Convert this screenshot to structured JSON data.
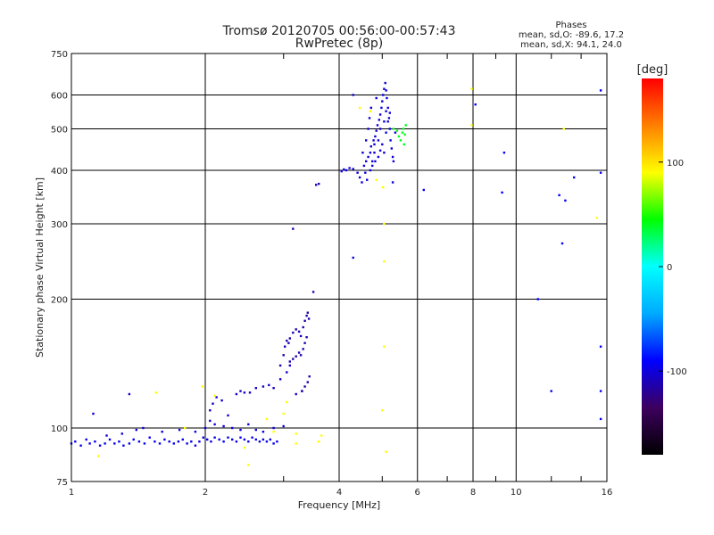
{
  "title_line1": "Tromsø 20120705 00:56:00-00:57:43",
  "title_line2": "RwPretec (8p)",
  "stats": {
    "header": "Phases",
    "line_o": "mean, sd,O: -89.6, 17.2",
    "line_x": "mean, sd,X:  94.1, 24.0"
  },
  "chart_data": {
    "type": "scatter",
    "title": "Tromsø 20120705 00:56:00-00:57:43",
    "subtitle": "RwPretec (8p)",
    "xlabel": "Frequency [MHz]",
    "ylabel": "Stationary phase Virtual Height [km]",
    "x_scale": "log",
    "y_scale": "log",
    "xlim": [
      1,
      16
    ],
    "ylim": [
      75,
      750
    ],
    "x_ticks": [
      1,
      2,
      4,
      6,
      8,
      10,
      16
    ],
    "x_tick_labels": [
      "1",
      "2",
      "4",
      "6",
      "8",
      "10",
      "16"
    ],
    "x_minor_ticks": [
      3,
      5,
      7,
      9,
      12,
      14
    ],
    "y_ticks": [
      75,
      100,
      200,
      300,
      400,
      500,
      600,
      750
    ],
    "y_tick_labels": [
      "75",
      "100",
      "200",
      "300",
      "400",
      "500",
      "600",
      "750"
    ],
    "grid": true,
    "colorbar": {
      "label": "[deg]",
      "range": [
        -180,
        180
      ],
      "ticks": [
        100,
        0,
        -100
      ],
      "tick_labels": [
        "100",
        "0",
        "-100"
      ],
      "colors": [
        "#000000",
        "#3d005e",
        "#0000ff",
        "#00aaff",
        "#00ffff",
        "#00ff00",
        "#ffff00",
        "#ff8000",
        "#ff0000"
      ]
    },
    "series": [
      {
        "phase": -95,
        "points": [
          [
            1.0,
            92
          ],
          [
            1.02,
            93
          ],
          [
            1.05,
            91
          ],
          [
            1.08,
            94
          ],
          [
            1.1,
            92
          ],
          [
            1.13,
            93
          ],
          [
            1.16,
            91
          ],
          [
            1.19,
            92
          ],
          [
            1.22,
            94
          ],
          [
            1.25,
            92
          ],
          [
            1.28,
            93
          ],
          [
            1.31,
            91
          ],
          [
            1.35,
            92
          ],
          [
            1.38,
            94
          ],
          [
            1.42,
            93
          ],
          [
            1.46,
            92
          ],
          [
            1.5,
            95
          ],
          [
            1.54,
            93
          ],
          [
            1.58,
            92
          ],
          [
            1.62,
            94
          ],
          [
            1.66,
            93
          ],
          [
            1.7,
            92
          ],
          [
            1.74,
            93
          ],
          [
            1.78,
            94
          ],
          [
            1.82,
            92
          ],
          [
            1.86,
            93
          ],
          [
            1.9,
            91
          ],
          [
            1.94,
            93
          ],
          [
            1.98,
            95
          ],
          [
            2.02,
            94
          ],
          [
            2.06,
            93
          ],
          [
            2.1,
            95
          ],
          [
            2.15,
            94
          ],
          [
            2.2,
            93
          ],
          [
            2.25,
            95
          ],
          [
            2.3,
            94
          ],
          [
            2.35,
            93
          ],
          [
            2.4,
            95
          ],
          [
            2.45,
            94
          ],
          [
            2.5,
            93
          ],
          [
            2.55,
            95
          ],
          [
            2.6,
            94
          ],
          [
            2.65,
            93
          ],
          [
            2.7,
            94
          ],
          [
            2.75,
            93
          ],
          [
            2.8,
            94
          ],
          [
            2.85,
            92
          ],
          [
            2.9,
            93
          ]
        ]
      },
      {
        "phase": -100,
        "points": [
          [
            1.2,
            96
          ],
          [
            1.3,
            97
          ],
          [
            1.4,
            99
          ],
          [
            1.45,
            100
          ],
          [
            1.6,
            98
          ],
          [
            1.75,
            99
          ],
          [
            1.9,
            98
          ],
          [
            2.0,
            100
          ],
          [
            2.05,
            104
          ],
          [
            2.1,
            102
          ],
          [
            2.2,
            101
          ],
          [
            2.3,
            100
          ],
          [
            2.4,
            99
          ],
          [
            2.5,
            102
          ],
          [
            2.6,
            99
          ],
          [
            2.7,
            98
          ],
          [
            2.85,
            100
          ],
          [
            3.0,
            101
          ]
        ]
      },
      {
        "phase": -105,
        "points": [
          [
            2.05,
            110
          ],
          [
            2.08,
            114
          ],
          [
            2.12,
            118
          ],
          [
            2.18,
            116
          ],
          [
            2.25,
            107
          ],
          [
            2.35,
            120
          ],
          [
            2.4,
            122
          ],
          [
            2.45,
            121
          ],
          [
            2.52,
            121
          ],
          [
            2.6,
            124
          ],
          [
            2.7,
            125
          ],
          [
            2.78,
            126
          ],
          [
            2.85,
            124
          ],
          [
            1.35,
            120
          ],
          [
            1.12,
            108
          ],
          [
            2.95,
            130
          ],
          [
            3.05,
            135
          ],
          [
            3.1,
            140
          ],
          [
            3.2,
            120
          ],
          [
            3.3,
            122
          ]
        ]
      },
      {
        "phase": -112,
        "points": [
          [
            2.95,
            140
          ],
          [
            3.0,
            148
          ],
          [
            3.02,
            155
          ],
          [
            3.05,
            160
          ],
          [
            3.08,
            158
          ],
          [
            3.1,
            162
          ],
          [
            3.15,
            167
          ],
          [
            3.2,
            170
          ],
          [
            3.25,
            168
          ],
          [
            3.28,
            164
          ],
          [
            3.32,
            172
          ],
          [
            3.35,
            178
          ],
          [
            3.38,
            183
          ],
          [
            3.4,
            186
          ],
          [
            3.42,
            180
          ],
          [
            3.1,
            143
          ],
          [
            3.15,
            145
          ],
          [
            3.2,
            147
          ],
          [
            3.25,
            150
          ],
          [
            3.28,
            148
          ],
          [
            3.32,
            153
          ],
          [
            3.35,
            158
          ],
          [
            3.38,
            163
          ],
          [
            3.3,
            122
          ],
          [
            3.35,
            125
          ],
          [
            3.4,
            128
          ],
          [
            3.43,
            132
          ],
          [
            3.5,
            208
          ],
          [
            3.55,
            370
          ],
          [
            3.6,
            372
          ],
          [
            3.15,
            292
          ]
        ]
      },
      {
        "phase": -100,
        "points": [
          [
            4.05,
            398
          ],
          [
            4.1,
            402
          ],
          [
            4.15,
            400
          ],
          [
            4.22,
            405
          ],
          [
            4.3,
            403
          ],
          [
            4.4,
            395
          ],
          [
            4.45,
            385
          ],
          [
            4.5,
            375
          ],
          [
            4.55,
            410
          ],
          [
            4.6,
            420
          ],
          [
            4.62,
            380
          ],
          [
            4.65,
            430
          ],
          [
            4.7,
            440
          ],
          [
            4.72,
            455
          ],
          [
            4.75,
            420
          ],
          [
            4.78,
            470
          ],
          [
            4.8,
            460
          ],
          [
            4.82,
            480
          ],
          [
            4.85,
            495
          ],
          [
            4.88,
            510
          ],
          [
            4.9,
            470
          ],
          [
            4.92,
            525
          ],
          [
            4.95,
            540
          ],
          [
            4.98,
            560
          ],
          [
            5.0,
            580
          ],
          [
            5.02,
            600
          ],
          [
            5.05,
            620
          ],
          [
            5.08,
            640
          ],
          [
            5.1,
            615
          ],
          [
            5.12,
            590
          ],
          [
            5.15,
            560
          ],
          [
            5.18,
            530
          ],
          [
            5.2,
            500
          ],
          [
            5.22,
            470
          ],
          [
            5.25,
            450
          ],
          [
            5.28,
            430
          ],
          [
            5.3,
            420
          ],
          [
            4.7,
            400
          ],
          [
            4.75,
            410
          ],
          [
            4.82,
            420
          ],
          [
            4.9,
            430
          ],
          [
            4.95,
            445
          ],
          [
            5.0,
            460
          ],
          [
            5.05,
            440
          ],
          [
            5.1,
            490
          ],
          [
            5.15,
            520
          ],
          [
            5.2,
            545
          ],
          [
            4.6,
            470
          ],
          [
            4.65,
            500
          ],
          [
            4.68,
            530
          ],
          [
            4.72,
            560
          ],
          [
            4.85,
            590
          ],
          [
            5.05,
            520
          ],
          [
            5.1,
            550
          ],
          [
            4.95,
            500
          ],
          [
            4.8,
            440
          ],
          [
            4.58,
            395
          ],
          [
            4.52,
            440
          ],
          [
            5.28,
            375
          ],
          [
            4.3,
            250
          ],
          [
            4.3,
            600
          ],
          [
            5.35,
            490
          ]
        ]
      },
      {
        "phase": 40,
        "points": [
          [
            5.45,
            480
          ],
          [
            5.5,
            470
          ],
          [
            5.55,
            490
          ],
          [
            5.58,
            500
          ],
          [
            5.6,
            460
          ],
          [
            5.62,
            485
          ],
          [
            5.65,
            510
          ],
          [
            5.3,
            500
          ],
          [
            5.4,
            495
          ]
        ]
      },
      {
        "phase": 90,
        "points": [
          [
            4.45,
            560
          ],
          [
            4.7,
            550
          ],
          [
            4.85,
            380
          ],
          [
            5.02,
            365
          ],
          [
            5.05,
            155
          ],
          [
            5.05,
            245
          ],
          [
            5.1,
            88
          ],
          [
            5.0,
            110
          ],
          [
            5.05,
            300
          ],
          [
            7.95,
            620
          ],
          [
            7.95,
            510
          ],
          [
            3.05,
            115
          ],
          [
            3.0,
            108
          ],
          [
            2.75,
            105
          ],
          [
            2.85,
            98
          ],
          [
            3.2,
            97
          ],
          [
            3.6,
            93
          ],
          [
            3.65,
            96
          ],
          [
            1.8,
            100
          ],
          [
            1.97,
            125
          ],
          [
            1.55,
            121
          ],
          [
            2.1,
            119
          ],
          [
            2.5,
            82
          ],
          [
            3.2,
            92
          ],
          [
            1.15,
            86
          ],
          [
            12.8,
            500
          ],
          [
            15.2,
            310
          ],
          [
            2.45,
            90
          ]
        ]
      },
      {
        "phase": -90,
        "points": [
          [
            6.2,
            360
          ],
          [
            8.1,
            570
          ],
          [
            9.4,
            440
          ],
          [
            9.3,
            355
          ],
          [
            11.2,
            200
          ],
          [
            12.5,
            350
          ],
          [
            12.7,
            270
          ],
          [
            12.0,
            122
          ],
          [
            12.9,
            340
          ],
          [
            15.5,
            155
          ],
          [
            15.5,
            122
          ],
          [
            15.5,
            105
          ],
          [
            15.5,
            615
          ],
          [
            15.5,
            395
          ],
          [
            13.5,
            385
          ]
        ]
      }
    ]
  }
}
